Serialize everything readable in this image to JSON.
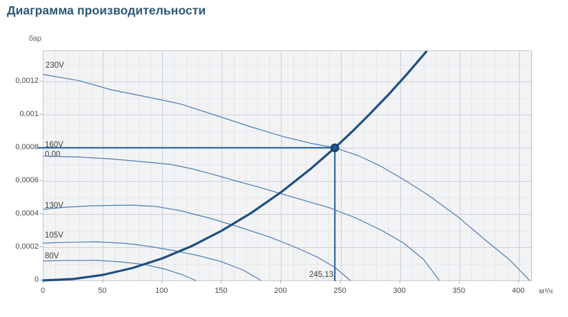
{
  "header": {
    "title": "Диаграмма производительности"
  },
  "chart_data": {
    "type": "line",
    "title": "Диаграмма производительности",
    "xlabel": "м³/ч",
    "ylabel": "бар",
    "xlim": [
      0,
      410.5
    ],
    "ylim": [
      0,
      0.0013833
    ],
    "grid": true,
    "x_minor_step": 10,
    "x_major_step": 50,
    "y_minor_step": 0.0001,
    "y_major_step": 0.0002,
    "x_ticks": [
      {
        "v": 0,
        "label": "0"
      },
      {
        "v": 50,
        "label": "50"
      },
      {
        "v": 100,
        "label": "100"
      },
      {
        "v": 150,
        "label": "150"
      },
      {
        "v": 200,
        "label": "200"
      },
      {
        "v": 250,
        "label": "250"
      },
      {
        "v": 300,
        "label": "300"
      },
      {
        "v": 350,
        "label": "350"
      },
      {
        "v": 400,
        "label": "400"
      }
    ],
    "y_ticks": [
      {
        "v": 0,
        "label": "0"
      },
      {
        "v": 0.0002,
        "label": "0,0002"
      },
      {
        "v": 0.0004,
        "label": "0,0004"
      },
      {
        "v": 0.0006,
        "label": "0,0006"
      },
      {
        "v": 0.0008,
        "label": "0,0008"
      },
      {
        "v": 0.001,
        "label": "0,001"
      },
      {
        "v": 0.0012,
        "label": "0,0012"
      }
    ],
    "series": [
      {
        "name": "fan-curve-230v",
        "label": "230V",
        "kind": "fan",
        "points": [
          [
            0,
            0.001242
          ],
          [
            30,
            0.001205
          ],
          [
            57,
            0.00115
          ],
          [
            85,
            0.00111
          ],
          [
            115,
            0.001065
          ],
          [
            145,
            0.000996
          ],
          [
            175,
            0.000925
          ],
          [
            202,
            0.000867
          ],
          [
            225,
            0.000827
          ],
          [
            245.13,
            0.0008
          ],
          [
            265,
            0.000752
          ],
          [
            283,
            0.000692
          ],
          [
            305,
            0.0006
          ],
          [
            324,
            0.000513
          ],
          [
            348,
            0.000387
          ],
          [
            370,
            0.000254
          ],
          [
            392,
            0.000125
          ],
          [
            409,
            0
          ]
        ]
      },
      {
        "name": "fan-curve-160v",
        "label": "160V",
        "kind": "fan",
        "points": [
          [
            0,
            0.00075
          ],
          [
            30,
            0.000744
          ],
          [
            57,
            0.000733
          ],
          [
            85,
            0.000715
          ],
          [
            107,
            0.0007
          ],
          [
            125,
            0.000673
          ],
          [
            144,
            0.000637
          ],
          [
            162,
            0.0006
          ],
          [
            179,
            0.000567
          ],
          [
            200,
            0.000523
          ],
          [
            219,
            0.000483
          ],
          [
            240,
            0.00044
          ],
          [
            262,
            0.000379
          ],
          [
            285,
            0.0003
          ],
          [
            303,
            0.000225
          ],
          [
            320,
            0.000125
          ],
          [
            333,
            0
          ]
        ]
      },
      {
        "name": "fan-curve-130v",
        "label": "130V",
        "kind": "fan",
        "points": [
          [
            0,
            0.000429
          ],
          [
            20,
            0.000442
          ],
          [
            40,
            0.00045
          ],
          [
            74,
            0.000454
          ],
          [
            95,
            0.000446
          ],
          [
            115,
            0.000421
          ],
          [
            140,
            0.000375
          ],
          [
            165,
            0.000321
          ],
          [
            190,
            0.000262
          ],
          [
            212,
            0.0002
          ],
          [
            230,
            0.000142
          ],
          [
            245,
            7.92e-05
          ],
          [
            258,
            0
          ]
        ]
      },
      {
        "name": "fan-curve-105v",
        "label": "105V",
        "kind": "fan",
        "points": [
          [
            0,
            0.000225
          ],
          [
            20,
            0.00023
          ],
          [
            45,
            0.000233
          ],
          [
            70,
            0.000223
          ],
          [
            90,
            0.000204
          ],
          [
            110,
            0.000179
          ],
          [
            130,
            0.00015
          ],
          [
            150,
            0.000112
          ],
          [
            168,
            6.25e-05
          ],
          [
            183,
            0
          ]
        ]
      },
      {
        "name": "fan-curve-80v",
        "label": "80V",
        "kind": "fan",
        "points": [
          [
            0,
            0.000117
          ],
          [
            20,
            0.00012
          ],
          [
            45,
            0.000121
          ],
          [
            65,
            0.000112
          ],
          [
            85,
            9.58e-05
          ],
          [
            103,
            6.67e-05
          ],
          [
            117,
            3.33e-05
          ],
          [
            128,
            0
          ]
        ]
      },
      {
        "name": "system-resistance-curve",
        "label": "",
        "kind": "system",
        "points": [
          [
            0,
            0
          ],
          [
            25,
            8.3e-06
          ],
          [
            50,
            3.33e-05
          ],
          [
            75,
            7.49e-05
          ],
          [
            100,
            0.000133
          ],
          [
            125,
            0.000208
          ],
          [
            150,
            0.0003
          ],
          [
            175,
            0.000408
          ],
          [
            200,
            0.000533
          ],
          [
            225,
            0.000674
          ],
          [
            245.13,
            0.0008
          ],
          [
            260,
            0.0009
          ],
          [
            275,
            0.001007
          ],
          [
            290,
            0.001119
          ],
          [
            305,
            0.001238
          ],
          [
            322,
            0.00138
          ]
        ]
      }
    ],
    "operating_point": {
      "x": 245.13,
      "y": 0.0008,
      "x_label": "245,13",
      "y_label": "0,00"
    },
    "legend_position": "none",
    "colors": {
      "plot_bg": "#f2f3f5",
      "plot_border": "#c4cad2",
      "grid_minor": "#e4e7ea",
      "grid_major": "#ccd1d8",
      "fan_curve": "#4d7caf",
      "system_curve": "#1d4e7e",
      "marker_line": "#2d6aa3",
      "point_fill": "#24578f",
      "point_stroke": "#173e6b",
      "title": "#2c5777",
      "tick_text": "#44474c"
    }
  }
}
